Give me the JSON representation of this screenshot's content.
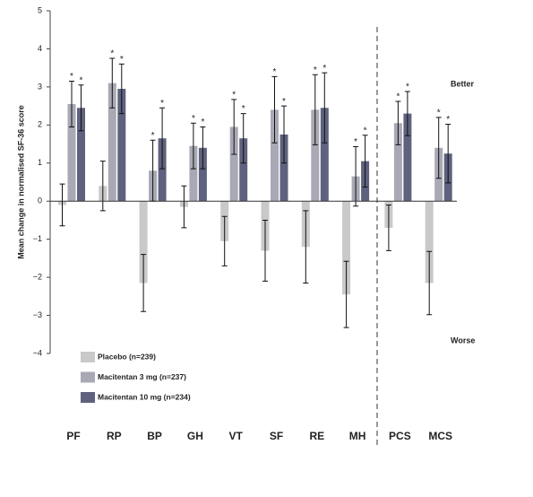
{
  "chart_data": {
    "type": "bar",
    "y_label": "Mean change in normalised SF-36 score",
    "annotations": [
      "Better",
      "Worse"
    ],
    "categories": [
      "PF",
      "RP",
      "BP",
      "GH",
      "VT",
      "SF",
      "RE",
      "MH",
      "PCS",
      "MCS"
    ],
    "series": [
      {
        "name": "Placebo (n=239)",
        "color": "#c9c9c9",
        "values": [
          -0.1,
          0.4,
          -2.15,
          -0.15,
          -1.05,
          -1.3,
          -1.2,
          -2.45,
          -0.7,
          -2.15
        ],
        "errors": [
          0.55,
          0.65,
          0.75,
          0.55,
          0.65,
          0.8,
          0.95,
          0.87,
          0.6,
          0.83
        ]
      },
      {
        "name": "Macitentan 3 mg (n=237)",
        "color": "#a9a9b5",
        "marker": "*",
        "values": [
          2.55,
          3.1,
          0.8,
          1.45,
          1.95,
          2.4,
          2.4,
          0.65,
          2.05,
          1.4
        ],
        "errors": [
          0.6,
          0.65,
          0.8,
          0.6,
          0.72,
          0.87,
          0.92,
          0.78,
          0.57,
          0.8
        ]
      },
      {
        "name": "Macitentan 10 mg (n=234)",
        "color": "#5f627e",
        "marker": "*",
        "values": [
          2.45,
          2.95,
          1.65,
          1.4,
          1.65,
          1.75,
          2.45,
          1.05,
          2.3,
          1.25
        ],
        "errors": [
          0.6,
          0.65,
          0.8,
          0.55,
          0.65,
          0.75,
          0.92,
          0.68,
          0.58,
          0.77
        ]
      }
    ],
    "ylim": [
      -4,
      5
    ],
    "yticks": [
      {
        "value": -4,
        "label": "−4"
      },
      {
        "value": -3,
        "label": "−3"
      },
      {
        "value": -2,
        "label": "−2"
      },
      {
        "value": -1,
        "label": "−1"
      },
      0,
      1,
      2,
      3,
      4,
      5
    ]
  }
}
